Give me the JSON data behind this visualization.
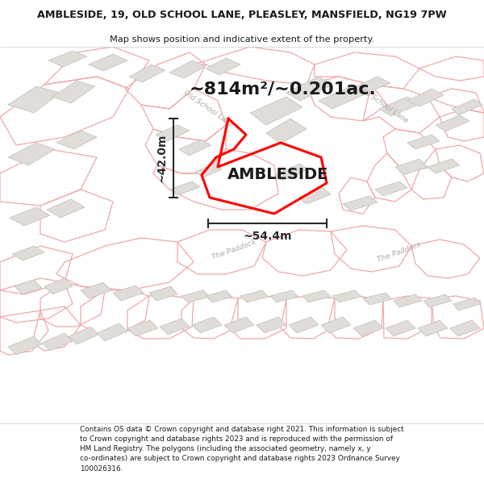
{
  "title_line1": "AMBLESIDE, 19, OLD SCHOOL LANE, PLEASLEY, MANSFIELD, NG19 7PW",
  "title_line2": "Map shows position and indicative extent of the property.",
  "area_text": "~814m²/~0.201ac.",
  "property_label": "AMBLESIDE",
  "dim_height": "~42.0m",
  "dim_width": "~54.4m",
  "footer_text": "Contains OS data © Crown copyright and database right 2021. This information is subject to Crown copyright and database rights 2023 and is reproduced with the permission of HM Land Registry. The polygons (including the associated geometry, namely x, y co-ordinates) are subject to Crown copyright and database rights 2023 Ordnance Survey 100026316.",
  "map_bg": "#f7f5f2",
  "building_color": "#e0ddd8",
  "building_edge": "#c8c5c0",
  "plot_edge": "#f0a8a8",
  "road_label_color": "#b0aba5",
  "property_color": "#ff0000",
  "text_color": "#1a1a1a",
  "title_bg": "#ffffff",
  "footer_bg": "#ffffff",
  "dim_color": "#2a2a2a",
  "title_fontsize": 9.2,
  "subtitle_fontsize": 8.2,
  "area_fontsize": 16,
  "label_fontsize": 14,
  "dim_fontsize": 10,
  "footer_fontsize": 6.4,
  "road_label_size": 6.5,
  "road_label_rot_osl": -35,
  "road_label_rot_paddock": 20
}
